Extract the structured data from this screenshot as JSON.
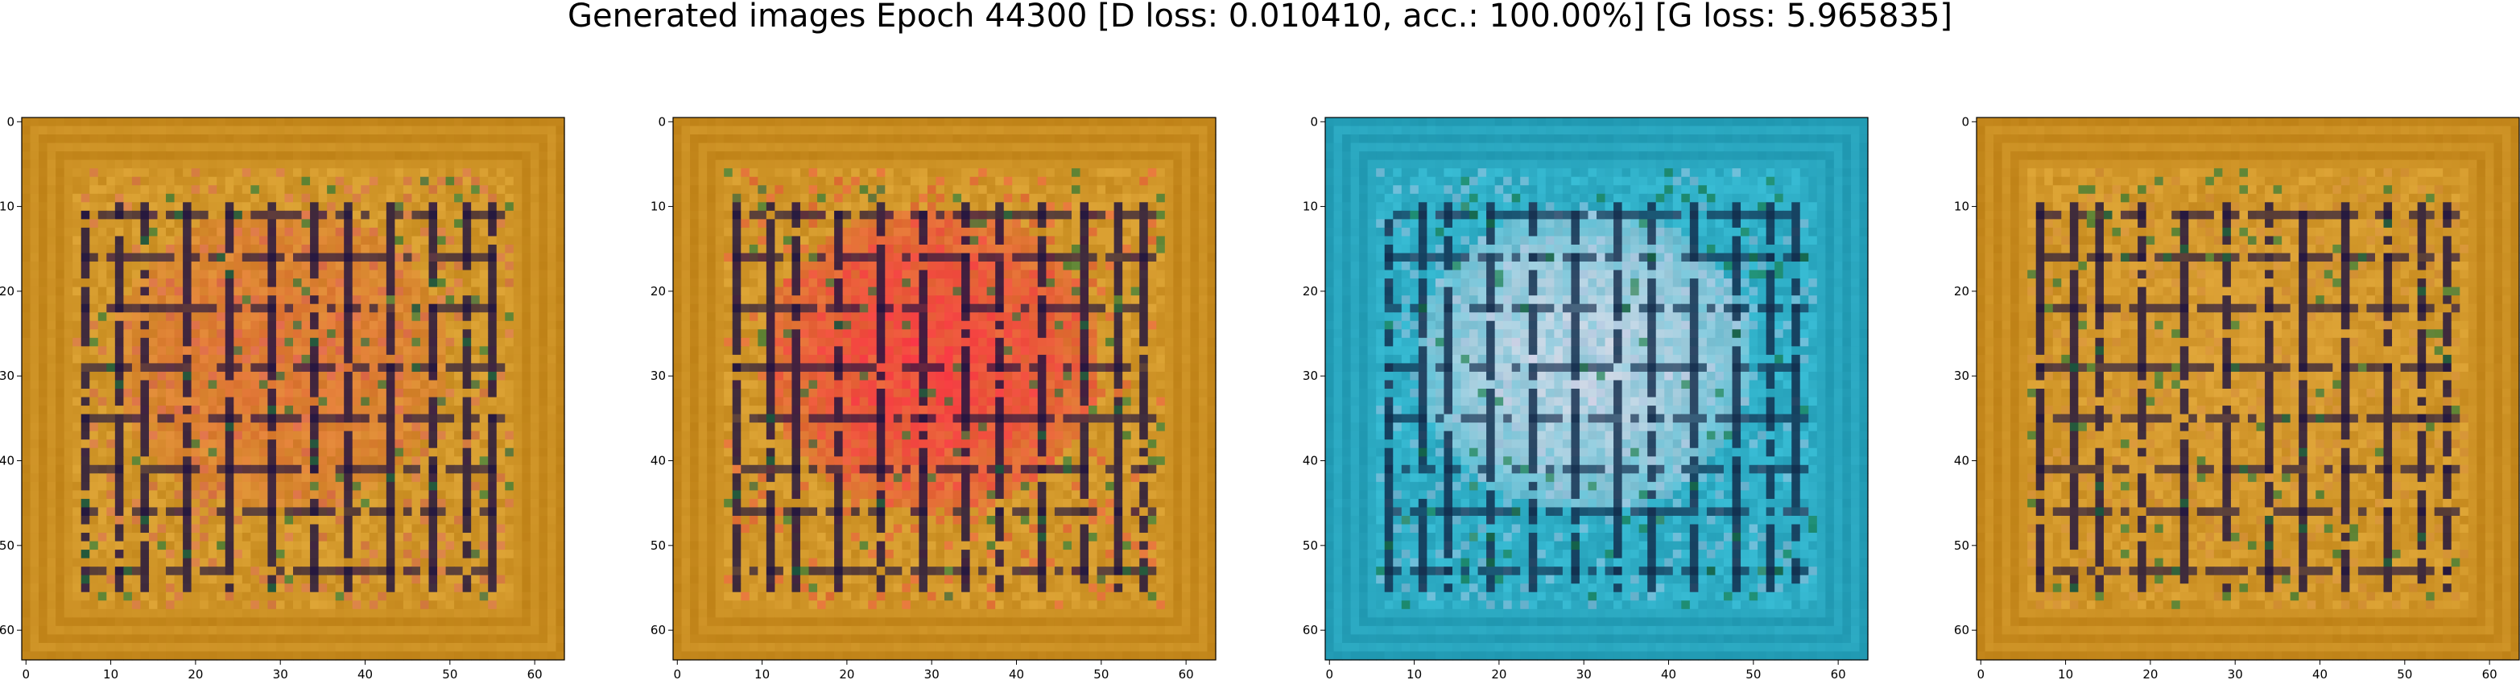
{
  "figure": {
    "title": "Generated images Epoch 44300 [D loss: 0.010410, acc.: 100.00%] [G loss: 5.965835]"
  },
  "chart_data": [
    {
      "type": "heatmap",
      "title": "",
      "xlabel": "",
      "ylabel": "",
      "xlim": [
        0,
        63
      ],
      "ylim": [
        63,
        0
      ],
      "xticks": [
        "0",
        "10",
        "20",
        "30",
        "40",
        "50",
        "60"
      ],
      "yticks": [
        "0",
        "10",
        "20",
        "30",
        "40",
        "50",
        "60"
      ],
      "palette": {
        "base": "#b87a10",
        "light": "#e8b040",
        "line": "#1a1040",
        "accent": "#e05070"
      },
      "blob": {
        "color": "#ff3050",
        "strength": 0.35
      }
    },
    {
      "type": "heatmap",
      "title": "",
      "xlabel": "",
      "ylabel": "",
      "xlim": [
        0,
        63
      ],
      "ylim": [
        63,
        0
      ],
      "xticks": [
        "0",
        "10",
        "20",
        "30",
        "40",
        "50",
        "60"
      ],
      "yticks": [
        "0",
        "10",
        "20",
        "30",
        "40",
        "50",
        "60"
      ],
      "palette": {
        "base": "#b87a10",
        "light": "#e8b040",
        "line": "#1a1040",
        "accent": "#ff3050"
      },
      "blob": {
        "color": "#ff2848",
        "strength": 0.85
      }
    },
    {
      "type": "heatmap",
      "title": "",
      "xlabel": "",
      "ylabel": "",
      "xlim": [
        0,
        63
      ],
      "ylim": [
        63,
        0
      ],
      "xticks": [
        "0",
        "10",
        "20",
        "30",
        "40",
        "50",
        "60"
      ],
      "yticks": [
        "0",
        "10",
        "20",
        "30",
        "40",
        "50",
        "60"
      ],
      "palette": {
        "base": "#1a8fa8",
        "light": "#40c8e0",
        "line": "#102848",
        "accent": "#d8c8e8"
      },
      "blob": {
        "color": "#e8e0ec",
        "strength": 0.9
      }
    },
    {
      "type": "heatmap",
      "title": "",
      "xlabel": "",
      "ylabel": "",
      "xlim": [
        0,
        63
      ],
      "ylim": [
        63,
        0
      ],
      "xticks": [
        "0",
        "10",
        "20",
        "30",
        "40",
        "50",
        "60"
      ],
      "yticks": [
        "0",
        "10",
        "20",
        "30",
        "40",
        "50",
        "60"
      ],
      "palette": {
        "base": "#b87a10",
        "light": "#e8b040",
        "line": "#1a1040",
        "accent": "#d88848"
      },
      "blob": {
        "color": "#f0b050",
        "strength": 0.2
      }
    }
  ]
}
